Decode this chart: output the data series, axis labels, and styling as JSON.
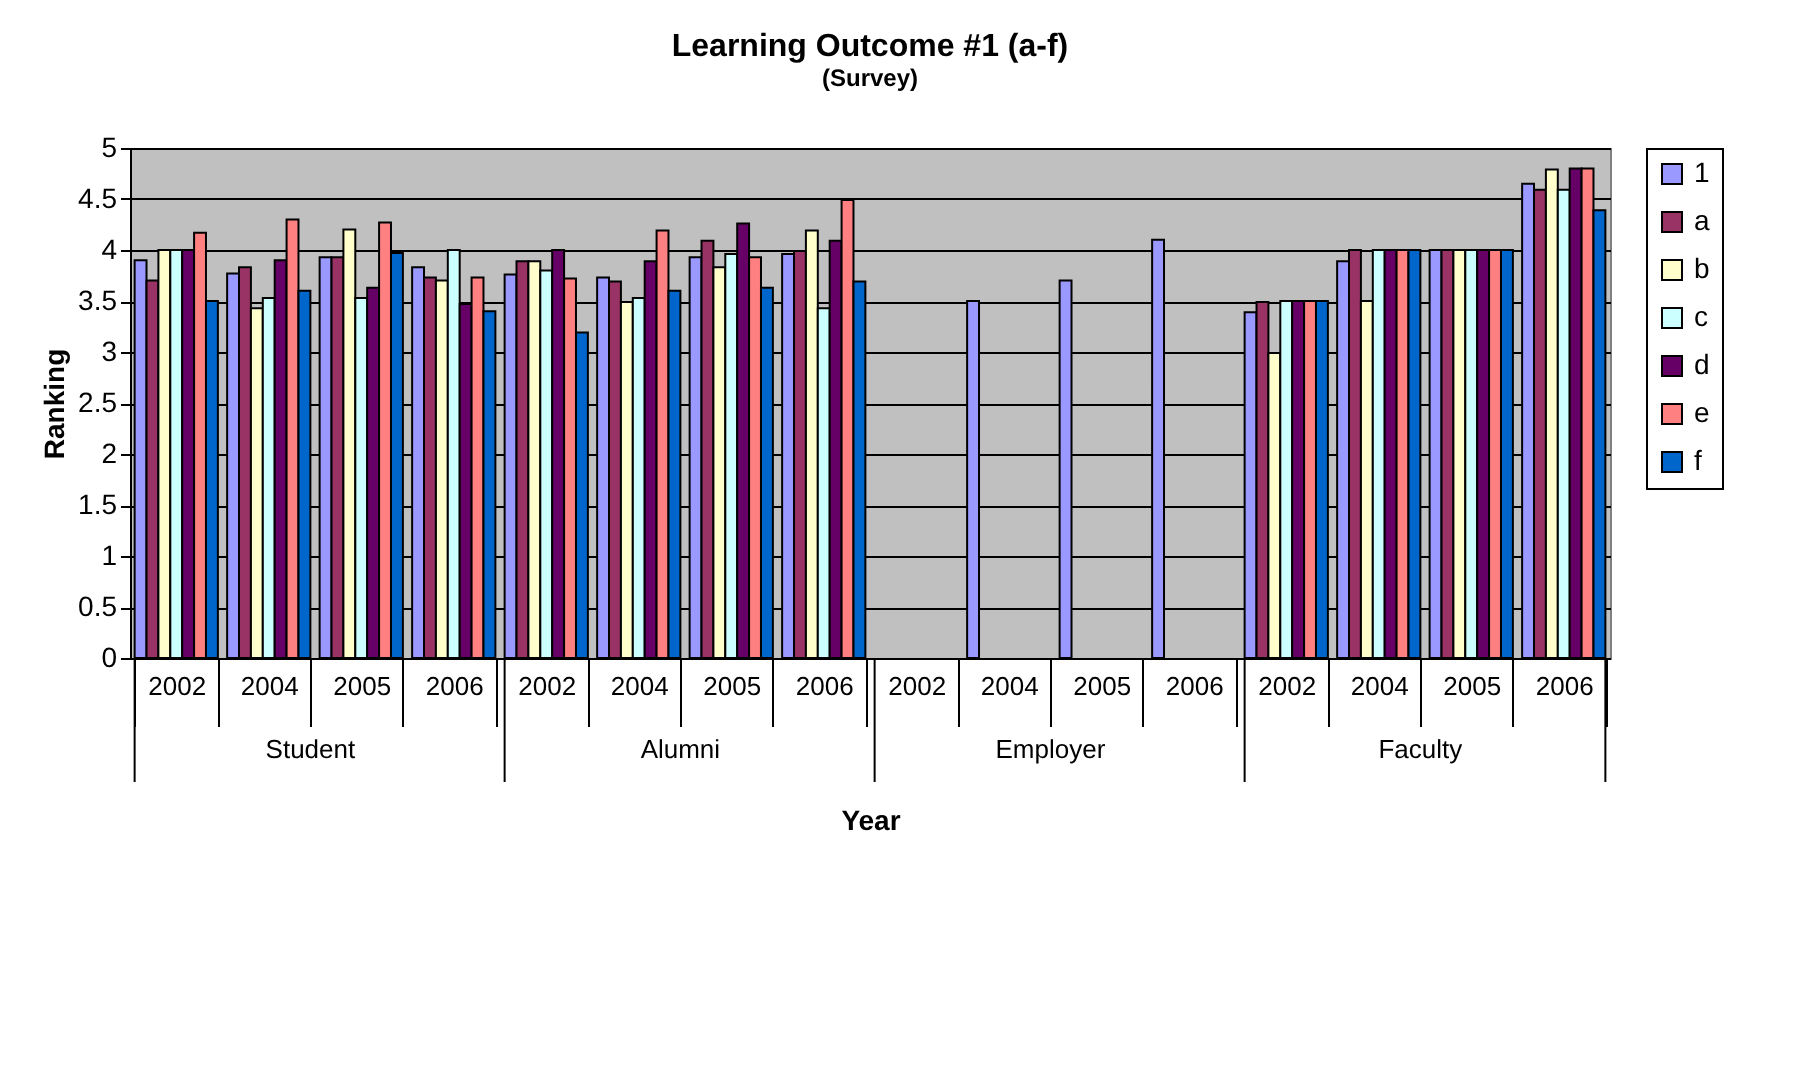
{
  "chart_data": {
    "type": "bar",
    "title": "Learning Outcome #1 (a-f)",
    "subtitle": "(Survey)",
    "xlabel": "Year",
    "ylabel": "Ranking",
    "categories": [
      "2002",
      "2004",
      "2005",
      "2006",
      "2002",
      "2004",
      "2005",
      "2006",
      "2002",
      "2004",
      "2005",
      "2006",
      "2002",
      "2004",
      "2005",
      "2006"
    ],
    "annotations": [
      "Student",
      "Alumni",
      "Employer",
      "Faculty"
    ],
    "series": [
      {
        "name": "1",
        "color": "#9999ff",
        "values": [
          3.9,
          3.77,
          3.93,
          3.83,
          3.76,
          3.73,
          3.93,
          3.96,
          null,
          3.5,
          3.7,
          4.1,
          3.39,
          3.89,
          4.0,
          4.65
        ]
      },
      {
        "name": "a",
        "color": "#993366",
        "values": [
          3.7,
          3.83,
          3.93,
          3.73,
          3.89,
          3.69,
          4.09,
          3.99,
          null,
          null,
          null,
          null,
          3.49,
          4.0,
          4.0,
          4.59
        ]
      },
      {
        "name": "b",
        "color": "#ffffcc",
        "values": [
          4.0,
          3.43,
          4.2,
          3.7,
          3.89,
          3.49,
          3.83,
          4.19,
          null,
          null,
          null,
          null,
          2.99,
          3.5,
          4.0,
          4.79
        ]
      },
      {
        "name": "c",
        "color": "#ccffff",
        "values": [
          4.0,
          3.53,
          3.53,
          4.0,
          3.8,
          3.53,
          3.96,
          3.43,
          null,
          null,
          null,
          null,
          3.5,
          4.0,
          4.0,
          4.59
        ]
      },
      {
        "name": "d",
        "color": "#660066",
        "values": [
          4.0,
          3.9,
          3.63,
          3.47,
          4.0,
          3.89,
          4.26,
          4.09,
          null,
          null,
          null,
          null,
          3.5,
          4.0,
          4.0,
          4.8
        ]
      },
      {
        "name": "e",
        "color": "#ff8080",
        "values": [
          4.17,
          4.3,
          4.27,
          3.73,
          3.72,
          4.19,
          3.93,
          4.49,
          null,
          null,
          null,
          null,
          3.5,
          4.0,
          4.0,
          4.8
        ]
      },
      {
        "name": "f",
        "color": "#0066cc",
        "values": [
          3.5,
          3.6,
          3.97,
          3.4,
          3.19,
          3.6,
          3.63,
          3.69,
          null,
          null,
          null,
          null,
          3.5,
          4.0,
          4.0,
          4.39
        ]
      }
    ],
    "ylim": [
      0,
      5
    ],
    "yticks": [
      0,
      0.5,
      1,
      1.5,
      2,
      2.5,
      3,
      3.5,
      4,
      4.5,
      5
    ],
    "grid": "y",
    "legend": "right"
  }
}
